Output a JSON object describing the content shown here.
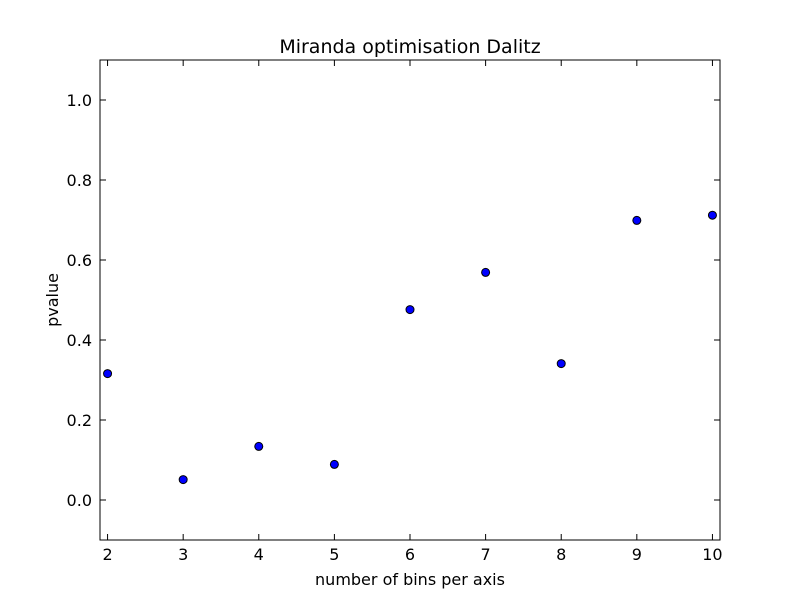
{
  "chart_data": {
    "type": "scatter",
    "title": "Miranda optimisation Dalitz",
    "xlabel": "number of bins per axis",
    "ylabel": "pvalue",
    "xlim": [
      1.9,
      10.1
    ],
    "ylim": [
      -0.1,
      1.1
    ],
    "x": [
      2,
      3,
      4,
      5,
      6,
      7,
      8,
      9,
      10
    ],
    "y": [
      0.316,
      0.051,
      0.134,
      0.089,
      0.476,
      0.569,
      0.341,
      0.699,
      0.712
    ],
    "xticks": [
      2,
      3,
      4,
      5,
      6,
      7,
      8,
      9,
      10
    ],
    "xtick_labels": [
      "2",
      "3",
      "4",
      "5",
      "6",
      "7",
      "8",
      "9",
      "10"
    ],
    "yticks": [
      0.0,
      0.2,
      0.4,
      0.6,
      0.8,
      1.0
    ],
    "ytick_labels": [
      "0.0",
      "0.2",
      "0.4",
      "0.6",
      "0.8",
      "1.0"
    ],
    "grid": false,
    "marker_color": "#0000ff",
    "marker_edge_color": "#000000"
  }
}
